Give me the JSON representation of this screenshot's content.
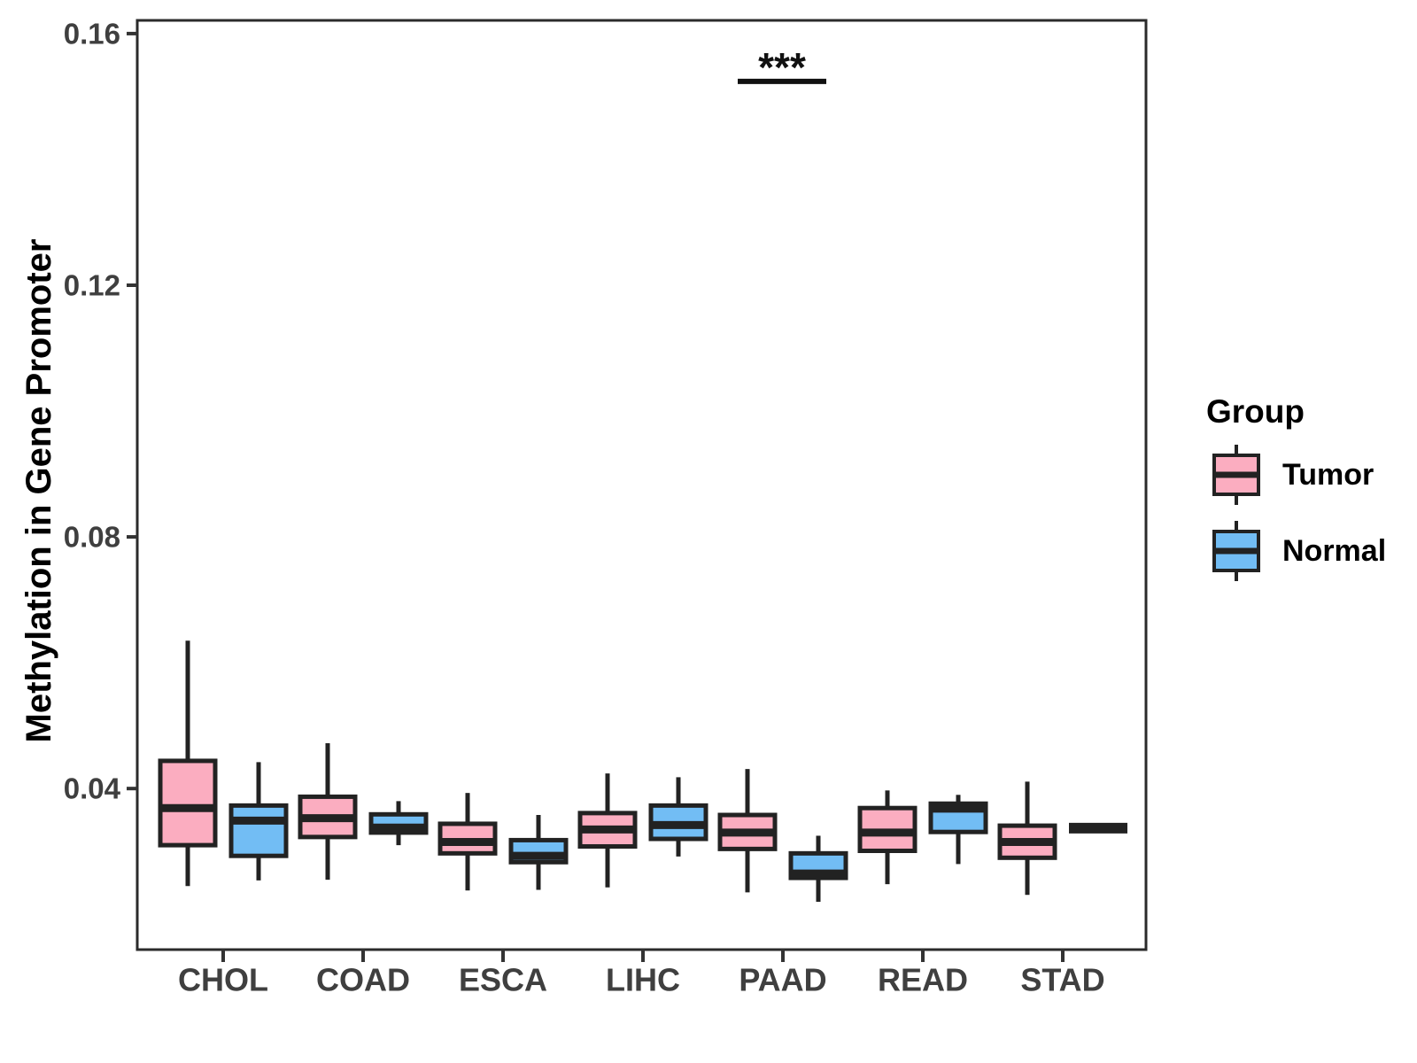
{
  "figure": {
    "background": "#FFFFFF"
  },
  "colors": {
    "tumor_fill": "#FBADC0",
    "normal_fill": "#72BDF4",
    "box_stroke": "#222222",
    "panel_border": "#2B2B2B",
    "tick_color": "#333333",
    "tick_label_color": "#3F3F3F",
    "axis_title_color": "#000000",
    "significance_color": "#111111"
  },
  "y_axis": {
    "title": "Methylation in Gene Promoter",
    "tick_labels": [
      "0.04",
      "0.08",
      "0.12",
      "0.16"
    ]
  },
  "x_axis": {
    "categories": [
      "CHOL",
      "COAD",
      "ESCA",
      "LIHC",
      "PAAD",
      "READ",
      "STAD"
    ]
  },
  "legend": {
    "title": "Group",
    "items": [
      {
        "label": "Tumor",
        "color_key": "tumor_fill"
      },
      {
        "label": "Normal",
        "color_key": "normal_fill"
      }
    ]
  },
  "chart_data": {
    "type": "boxplot",
    "title": "",
    "xlabel": "",
    "ylabel": "Methylation in Gene Promoter",
    "categories": [
      "CHOL",
      "COAD",
      "ESCA",
      "LIHC",
      "PAAD",
      "READ",
      "STAD"
    ],
    "groups": [
      "Tumor",
      "Normal"
    ],
    "ylim": [
      0.0144,
      0.1621
    ],
    "yticks": [
      0.04,
      0.08,
      0.12,
      0.16
    ],
    "ytick_labels": [
      "0.04",
      "0.08",
      "0.12",
      "0.16"
    ],
    "grid": false,
    "legend_position": "right",
    "series": [
      {
        "name": "Tumor",
        "color_key": "tumor_fill",
        "boxes": [
          {
            "category": "CHOL",
            "whisker_low": 0.0245,
            "q1": 0.031,
            "median": 0.0369,
            "q3": 0.0444,
            "whisker_high": 0.0635
          },
          {
            "category": "COAD",
            "whisker_low": 0.0255,
            "q1": 0.0323,
            "median": 0.0353,
            "q3": 0.0387,
            "whisker_high": 0.0472
          },
          {
            "category": "ESCA",
            "whisker_low": 0.0238,
            "q1": 0.0297,
            "median": 0.0315,
            "q3": 0.0344,
            "whisker_high": 0.0393
          },
          {
            "category": "LIHC",
            "whisker_low": 0.0243,
            "q1": 0.0308,
            "median": 0.0335,
            "q3": 0.0361,
            "whisker_high": 0.0424
          },
          {
            "category": "PAAD",
            "whisker_low": 0.0235,
            "q1": 0.0304,
            "median": 0.033,
            "q3": 0.0358,
            "whisker_high": 0.0431
          },
          {
            "category": "READ",
            "whisker_low": 0.0248,
            "q1": 0.0301,
            "median": 0.033,
            "q3": 0.0369,
            "whisker_high": 0.0397
          },
          {
            "category": "STAD",
            "whisker_low": 0.0231,
            "q1": 0.029,
            "median": 0.0315,
            "q3": 0.0341,
            "whisker_high": 0.0411
          }
        ]
      },
      {
        "name": "Normal",
        "color_key": "normal_fill",
        "boxes": [
          {
            "category": "CHOL",
            "whisker_low": 0.0254,
            "q1": 0.0293,
            "median": 0.0349,
            "q3": 0.0373,
            "whisker_high": 0.0442
          },
          {
            "category": "COAD",
            "whisker_low": 0.031,
            "q1": 0.033,
            "median": 0.0338,
            "q3": 0.0359,
            "whisker_high": 0.038
          },
          {
            "category": "ESCA",
            "whisker_low": 0.0239,
            "q1": 0.0283,
            "median": 0.0293,
            "q3": 0.0318,
            "whisker_high": 0.0358
          },
          {
            "category": "LIHC",
            "whisker_low": 0.0292,
            "q1": 0.032,
            "median": 0.0342,
            "q3": 0.0373,
            "whisker_high": 0.0418
          },
          {
            "category": "PAAD",
            "whisker_low": 0.022,
            "q1": 0.0258,
            "median": 0.0265,
            "q3": 0.0297,
            "whisker_high": 0.0325
          },
          {
            "category": "READ",
            "whisker_low": 0.028,
            "q1": 0.0331,
            "median": 0.0368,
            "q3": 0.0376,
            "whisker_high": 0.039
          },
          {
            "category": "STAD",
            "whisker_low": 0.0337,
            "q1": 0.0337,
            "median": 0.0337,
            "q3": 0.0337,
            "whisker_high": 0.0337
          }
        ]
      }
    ],
    "annotations": [
      {
        "type": "significance",
        "category": "PAAD",
        "label": "***",
        "bar_value": 0.1524
      }
    ]
  }
}
